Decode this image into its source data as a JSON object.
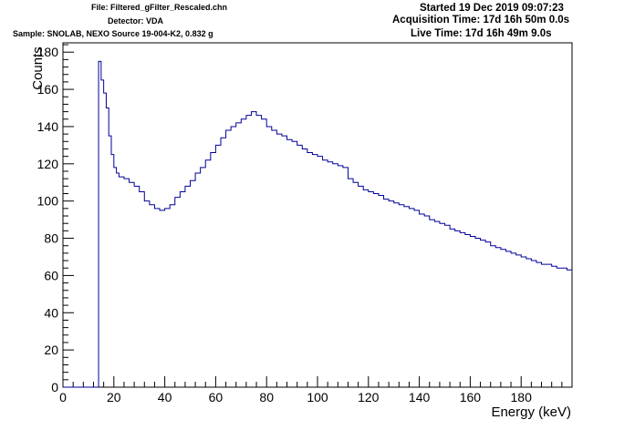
{
  "header": {
    "file": "File: Filtered_gFilter_Rescaled.chn",
    "detector": "Detector: VDA",
    "sample": "Sample: SNOLAB, NEXO Source 19-004-K2, 0.832 g",
    "started": "Started 19 Dec 2019 09:07:23",
    "acquisition_time": "Acquisition Time: 17d 16h 50m 0.0s",
    "live_time": "Live Time: 17d 16h 49m 9.0s"
  },
  "colors": {
    "series": "#000099",
    "axis": "#000000",
    "background": "#ffffff"
  },
  "chart_data": {
    "type": "line",
    "title": "",
    "xlabel": "Energy (keV)",
    "ylabel": "Counts",
    "xlim": [
      0,
      200
    ],
    "ylim": [
      0,
      185
    ],
    "x_ticks": [
      0,
      20,
      40,
      60,
      80,
      100,
      120,
      140,
      160,
      180
    ],
    "y_ticks": [
      0,
      20,
      40,
      60,
      80,
      100,
      120,
      140,
      160,
      180
    ],
    "grid": false,
    "legend": "none",
    "step_style": "histogram",
    "series": [
      {
        "x": [
          0,
          13.8,
          14,
          15,
          16,
          17,
          18,
          19,
          20,
          21,
          22,
          24,
          26,
          28,
          30,
          32,
          34,
          36,
          38,
          40,
          42,
          44,
          46,
          48,
          50,
          52,
          54,
          56,
          58,
          60,
          62,
          64,
          66,
          68,
          70,
          72,
          74,
          76,
          78,
          80,
          82,
          84,
          86,
          88,
          90,
          92,
          94,
          96,
          98,
          100,
          102,
          104,
          106,
          108,
          110,
          112,
          114,
          116,
          118,
          120,
          122,
          124,
          126,
          128,
          130,
          132,
          134,
          136,
          138,
          140,
          142,
          144,
          146,
          148,
          150,
          152,
          154,
          156,
          158,
          160,
          162,
          164,
          166,
          168,
          170,
          172,
          174,
          176,
          178,
          180,
          182,
          184,
          186,
          188,
          190,
          192,
          194,
          196,
          198,
          200
        ],
        "values": [
          0,
          0,
          175,
          165,
          158,
          150,
          135,
          125,
          118,
          115,
          113,
          112,
          110,
          108,
          105,
          100,
          98,
          96,
          95,
          96,
          98,
          102,
          105,
          108,
          111,
          115,
          118,
          122,
          126,
          130,
          134,
          138,
          140,
          142,
          144,
          146,
          148,
          146,
          144,
          140,
          138,
          136,
          135,
          133,
          132,
          130,
          128,
          126,
          125,
          124,
          122,
          121,
          120,
          119,
          118,
          112,
          110,
          108,
          106,
          105,
          104,
          103,
          101,
          100,
          99,
          98,
          97,
          96,
          95,
          93,
          92,
          90,
          89,
          88,
          87,
          85,
          84,
          83,
          82,
          81,
          80,
          79,
          78,
          76,
          75,
          74,
          73,
          72,
          71,
          70,
          69,
          68,
          67,
          66,
          66,
          65,
          64,
          64,
          63,
          62
        ]
      }
    ]
  }
}
